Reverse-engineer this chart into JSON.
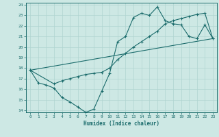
{
  "xlabel": "Humidex (Indice chaleur)",
  "bg_color": "#cde8e4",
  "grid_color": "#b0d4d0",
  "line_color": "#1a6b6b",
  "xlim": [
    -0.5,
    23.5
  ],
  "ylim": [
    13.8,
    24.2
  ],
  "xticks": [
    0,
    1,
    2,
    3,
    4,
    5,
    6,
    7,
    8,
    9,
    10,
    11,
    12,
    13,
    14,
    15,
    16,
    17,
    18,
    19,
    20,
    21,
    22,
    23
  ],
  "yticks": [
    14,
    15,
    16,
    17,
    18,
    19,
    20,
    21,
    22,
    23,
    24
  ],
  "line1_x": [
    0,
    1,
    2,
    3,
    4,
    5,
    6,
    7,
    8,
    9,
    10,
    11,
    12,
    13,
    14,
    15,
    16,
    17,
    18,
    19,
    20,
    21,
    22,
    23
  ],
  "line1_y": [
    17.8,
    16.6,
    16.4,
    16.1,
    15.2,
    14.8,
    14.3,
    13.8,
    14.1,
    15.8,
    17.5,
    20.5,
    21.0,
    22.8,
    23.2,
    23.0,
    23.8,
    22.5,
    22.2,
    22.1,
    21.0,
    20.8,
    22.1,
    20.8
  ],
  "line2_x": [
    0,
    3,
    4,
    5,
    6,
    7,
    8,
    9,
    10,
    11,
    12,
    13,
    14,
    15,
    16,
    17,
    18,
    19,
    20,
    21,
    22,
    23
  ],
  "line2_y": [
    17.8,
    16.5,
    16.8,
    17.0,
    17.2,
    17.4,
    17.5,
    17.6,
    18.0,
    18.8,
    19.4,
    20.0,
    20.5,
    21.0,
    21.5,
    22.2,
    22.5,
    22.7,
    22.9,
    23.1,
    23.2,
    20.8
  ],
  "line3_x": [
    0,
    23
  ],
  "line3_y": [
    17.8,
    20.8
  ]
}
